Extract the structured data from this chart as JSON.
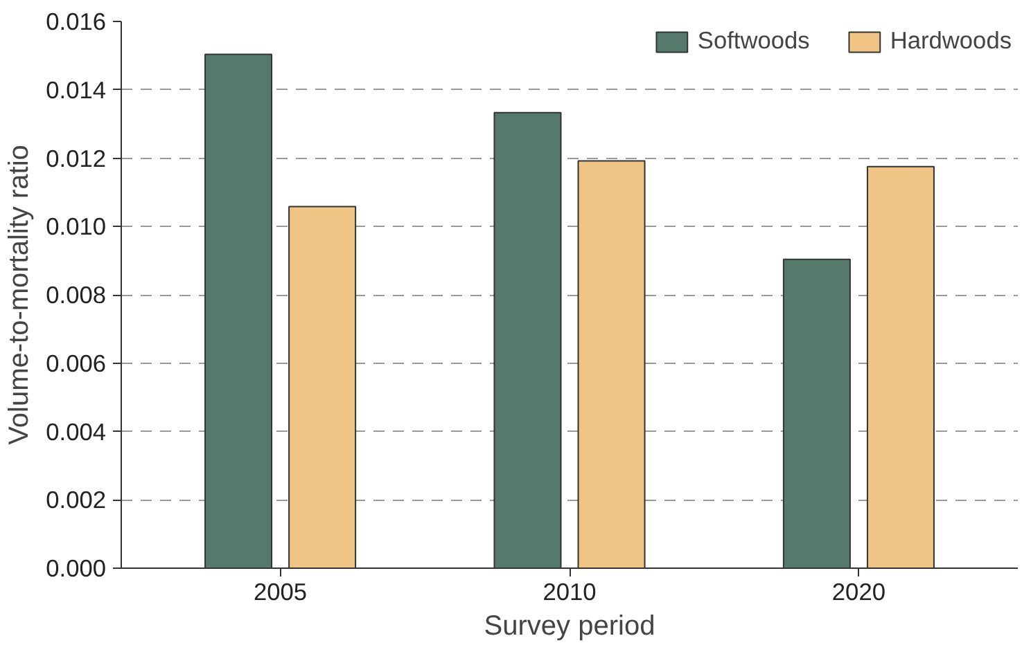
{
  "chart_data": {
    "type": "bar",
    "xlabel": "Survey period",
    "ylabel": "Volume-to-mortality ratio",
    "categories": [
      "2005",
      "2010",
      "2020"
    ],
    "series": [
      {
        "name": "Softwoods",
        "color": "#557a6c",
        "values": [
          0.01504,
          0.01333,
          0.00904
        ]
      },
      {
        "name": "Hardwoods",
        "color": "#f0c484",
        "values": [
          0.01058,
          0.01192,
          0.01175
        ]
      }
    ],
    "ylim": [
      0,
      0.016
    ],
    "yticks": [
      {
        "value": 0,
        "label": "0.000"
      },
      {
        "value": 0.002,
        "label": "0.002"
      },
      {
        "value": 0.004,
        "label": "0.004"
      },
      {
        "value": 0.006,
        "label": "0.006"
      },
      {
        "value": 0.008,
        "label": "0.008"
      },
      {
        "value": 0.01,
        "label": "0.010"
      },
      {
        "value": 0.012,
        "label": "0.012"
      },
      {
        "value": 0.014,
        "label": "0.014"
      },
      {
        "value": 0.016,
        "label": "0.016"
      }
    ],
    "grid": "y",
    "legend": "top right"
  }
}
